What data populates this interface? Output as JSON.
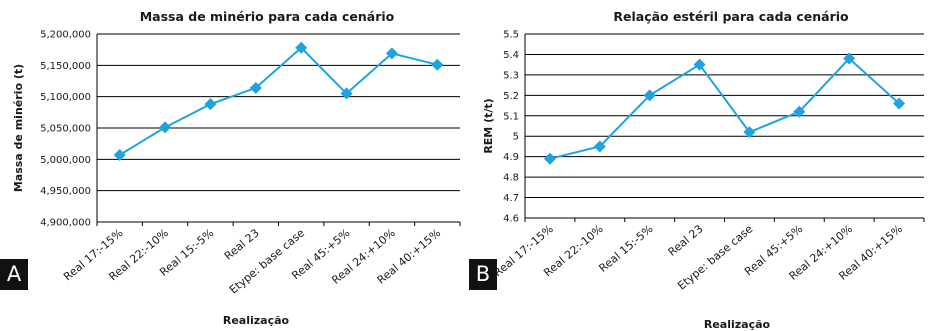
{
  "panels": [
    {
      "label": "A"
    },
    {
      "label": "B"
    }
  ],
  "colors": {
    "series": "#1fa3e0",
    "grid": "#000000",
    "badge": "#111111"
  },
  "chart_data": [
    {
      "type": "line",
      "title": "Massa de minério para cada cenário",
      "xlabel": "Realização",
      "ylabel": "Massa de minério (t)",
      "ylim": [
        4900000,
        5200000
      ],
      "yticks": [
        4900000,
        4950000,
        5000000,
        5050000,
        5100000,
        5150000,
        5200000
      ],
      "ytick_labels": [
        "4,900,000",
        "4,950,000",
        "5,000,000",
        "5,050,000",
        "5,100,000",
        "5,150,000",
        "5,200,000"
      ],
      "grid": true,
      "categories": [
        "Real 17:-15%",
        "Real 22:-10%",
        "Real 15:-5%",
        "Real 23",
        "Etype: base case",
        "Real 45:+5%",
        "Real 24:+10%",
        "Real 40:+15%"
      ],
      "series": [
        {
          "values": [
            5007000,
            5051000,
            5088000,
            5114000,
            5178000,
            5105000,
            5169000,
            5151000
          ]
        }
      ]
    },
    {
      "type": "line",
      "title": "Relação estéril para cada cenário",
      "xlabel": "Realização",
      "ylabel": "REM (t/t)",
      "ylim": [
        4.6,
        5.5
      ],
      "yticks": [
        4.6,
        4.7,
        4.8,
        4.9,
        5.0,
        5.1,
        5.2,
        5.3,
        5.4,
        5.5
      ],
      "ytick_labels": [
        "4.6",
        "4.7",
        "4.8",
        "4.9",
        "5",
        "5.1",
        "5.2",
        "5.3",
        "5.4",
        "5.5"
      ],
      "grid": true,
      "categories": [
        "Real 17:-15%",
        "Real 22:-10%",
        "Real 15:-5%",
        "Real 23",
        "Etype: base case",
        "Real 45:+5%",
        "Real 24:+10%",
        "Real 40:+15%"
      ],
      "series": [
        {
          "values": [
            4.89,
            4.95,
            5.2,
            5.35,
            5.02,
            5.12,
            5.38,
            5.16
          ]
        }
      ]
    }
  ]
}
